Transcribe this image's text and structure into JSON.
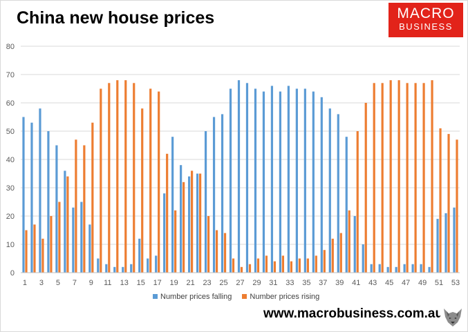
{
  "title": "China new house prices",
  "brand": {
    "line1": "MACRO",
    "line2": "BUSINESS",
    "color": "#e2231a"
  },
  "website": "www.macrobusiness.com.au",
  "logo_icon": "wolf-icon",
  "chart_data": {
    "type": "bar",
    "x": [
      1,
      2,
      3,
      4,
      5,
      6,
      7,
      8,
      9,
      10,
      11,
      12,
      13,
      14,
      15,
      16,
      17,
      18,
      19,
      20,
      21,
      22,
      23,
      24,
      25,
      26,
      27,
      28,
      29,
      30,
      31,
      32,
      33,
      34,
      35,
      36,
      37,
      38,
      39,
      40,
      41,
      42,
      43,
      44,
      45,
      46,
      47,
      48,
      49,
      50,
      51,
      52,
      53
    ],
    "x_tick_labels": [
      "1",
      "3",
      "5",
      "7",
      "9",
      "11",
      "13",
      "15",
      "17",
      "19",
      "21",
      "23",
      "25",
      "27",
      "29",
      "31",
      "33",
      "35",
      "37",
      "39",
      "41",
      "43",
      "45",
      "47",
      "49",
      "51",
      "53"
    ],
    "y_ticks": [
      "0",
      "10",
      "20",
      "30",
      "40",
      "50",
      "60",
      "70",
      "80"
    ],
    "ylim": [
      0,
      80
    ],
    "grid": true,
    "legend": "bottom",
    "series": [
      {
        "name": "Number prices falling",
        "color": "#5b9bd5",
        "values": [
          55,
          53,
          58,
          50,
          45,
          36,
          23,
          25,
          17,
          5,
          3,
          2,
          2,
          3,
          12,
          5,
          6,
          28,
          48,
          38,
          34,
          35,
          50,
          55,
          56,
          65,
          68,
          67,
          65,
          64,
          66,
          64,
          66,
          65,
          65,
          64,
          62,
          58,
          56,
          48,
          20,
          10,
          3,
          3,
          2,
          2,
          3,
          3,
          3,
          2,
          19,
          21,
          23
        ]
      },
      {
        "name": "Number prices rising",
        "color": "#ed7d31",
        "values": [
          15,
          17,
          12,
          20,
          25,
          34,
          47,
          45,
          53,
          65,
          67,
          68,
          68,
          67,
          58,
          65,
          64,
          42,
          22,
          32,
          36,
          35,
          20,
          15,
          14,
          5,
          2,
          3,
          5,
          6,
          4,
          6,
          4,
          5,
          5,
          6,
          8,
          12,
          14,
          22,
          50,
          60,
          67,
          67,
          68,
          68,
          67,
          67,
          67,
          68,
          51,
          49,
          47
        ]
      }
    ]
  }
}
